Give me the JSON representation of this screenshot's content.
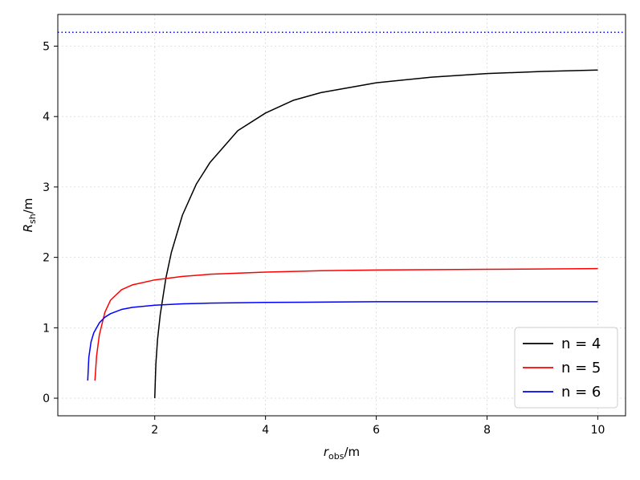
{
  "chart_data": {
    "type": "line",
    "xlabel": {
      "main": "r",
      "sub": "obs",
      "suffix": "/m"
    },
    "ylabel": {
      "main": "R",
      "sub": "sh",
      "suffix": "/m"
    },
    "xlim": [
      0.25,
      10.5
    ],
    "ylim": [
      -0.25,
      5.45
    ],
    "xticks": [
      2,
      4,
      6,
      8,
      10
    ],
    "yticks": [
      0,
      1,
      2,
      3,
      4,
      5
    ],
    "grid": true,
    "legend_position": "lower-right",
    "reference_line": {
      "y": 5.196,
      "style": "dotted",
      "color": "#0000ff"
    },
    "series": [
      {
        "name": "n = 4",
        "color": "#000000",
        "x": [
          2.0,
          2.02,
          2.05,
          2.1,
          2.2,
          2.3,
          2.5,
          2.75,
          3.0,
          3.5,
          4.0,
          4.5,
          5.0,
          6.0,
          7.0,
          8.0,
          9.0,
          10.0
        ],
        "y": [
          0.0,
          0.48,
          0.83,
          1.19,
          1.7,
          2.07,
          2.6,
          3.04,
          3.35,
          3.8,
          4.05,
          4.23,
          4.34,
          4.48,
          4.56,
          4.61,
          4.64,
          4.66
        ]
      },
      {
        "name": "n = 5",
        "color": "#ff0000",
        "x": [
          0.92,
          0.95,
          1.0,
          1.1,
          1.2,
          1.4,
          1.6,
          2.0,
          2.5,
          3.0,
          4.0,
          5.0,
          6.0,
          8.0,
          10.0
        ],
        "y": [
          0.25,
          0.6,
          0.9,
          1.22,
          1.39,
          1.54,
          1.61,
          1.68,
          1.73,
          1.76,
          1.79,
          1.81,
          1.82,
          1.83,
          1.84
        ]
      },
      {
        "name": "n = 6",
        "color": "#0000ff",
        "x": [
          0.79,
          0.81,
          0.85,
          0.9,
          1.0,
          1.1,
          1.2,
          1.4,
          1.6,
          2.0,
          2.5,
          3.0,
          4.0,
          6.0,
          8.0,
          10.0
        ],
        "y": [
          0.25,
          0.58,
          0.8,
          0.93,
          1.07,
          1.15,
          1.2,
          1.26,
          1.29,
          1.32,
          1.34,
          1.35,
          1.36,
          1.37,
          1.37,
          1.37
        ]
      }
    ]
  }
}
